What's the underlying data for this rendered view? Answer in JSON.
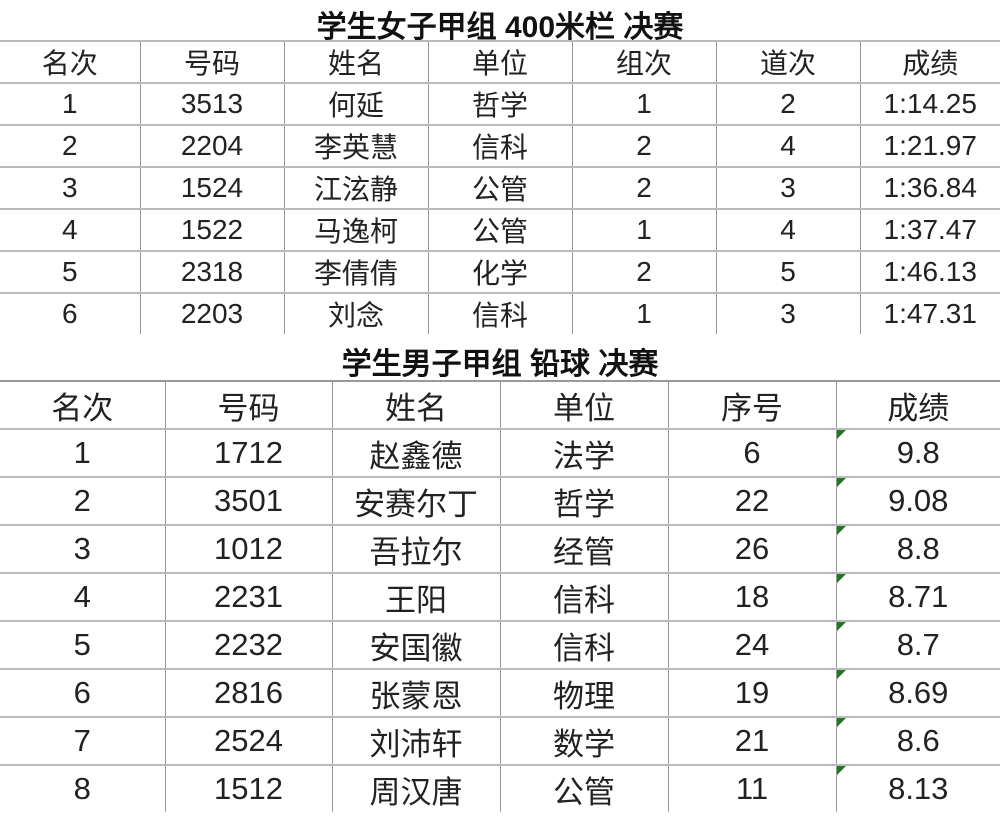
{
  "table1": {
    "title": "学生女子甲组 400米栏 决赛",
    "headers": [
      "名次",
      "号码",
      "姓名",
      "单位",
      "组次",
      "道次",
      "成绩"
    ],
    "rows": [
      [
        "1",
        "3513",
        "何延",
        "哲学",
        "1",
        "2",
        "1:14.25"
      ],
      [
        "2",
        "2204",
        "李英慧",
        "信科",
        "2",
        "4",
        "1:21.97"
      ],
      [
        "3",
        "1524",
        "江泫静",
        "公管",
        "2",
        "3",
        "1:36.84"
      ],
      [
        "4",
        "1522",
        "马逸柯",
        "公管",
        "1",
        "4",
        "1:37.47"
      ],
      [
        "5",
        "2318",
        "李倩倩",
        "化学",
        "2",
        "5",
        "1:46.13"
      ],
      [
        "6",
        "2203",
        "刘念",
        "信科",
        "1",
        "3",
        "1:47.31"
      ]
    ]
  },
  "table2": {
    "title": "学生男子甲组 铅球 决赛",
    "headers": [
      "名次",
      "号码",
      "姓名",
      "单位",
      "序号",
      "成绩"
    ],
    "rows": [
      [
        "1",
        "1712",
        "赵鑫德",
        "法学",
        "6",
        "9.8"
      ],
      [
        "2",
        "3501",
        "安赛尔丁",
        "哲学",
        "22",
        "9.08"
      ],
      [
        "3",
        "1012",
        "吾拉尔",
        "经管",
        "26",
        "8.8"
      ],
      [
        "4",
        "2231",
        "王阳",
        "信科",
        "18",
        "8.71"
      ],
      [
        "5",
        "2232",
        "安国徽",
        "信科",
        "24",
        "8.7"
      ],
      [
        "6",
        "2816",
        "张蒙恩",
        "物理",
        "19",
        "8.69"
      ],
      [
        "7",
        "2524",
        "刘沛轩",
        "数学",
        "21",
        "8.6"
      ],
      [
        "8",
        "1512",
        "周汉唐",
        "公管",
        "11",
        "8.13"
      ]
    ],
    "marker_color": "#1e7a1e"
  }
}
